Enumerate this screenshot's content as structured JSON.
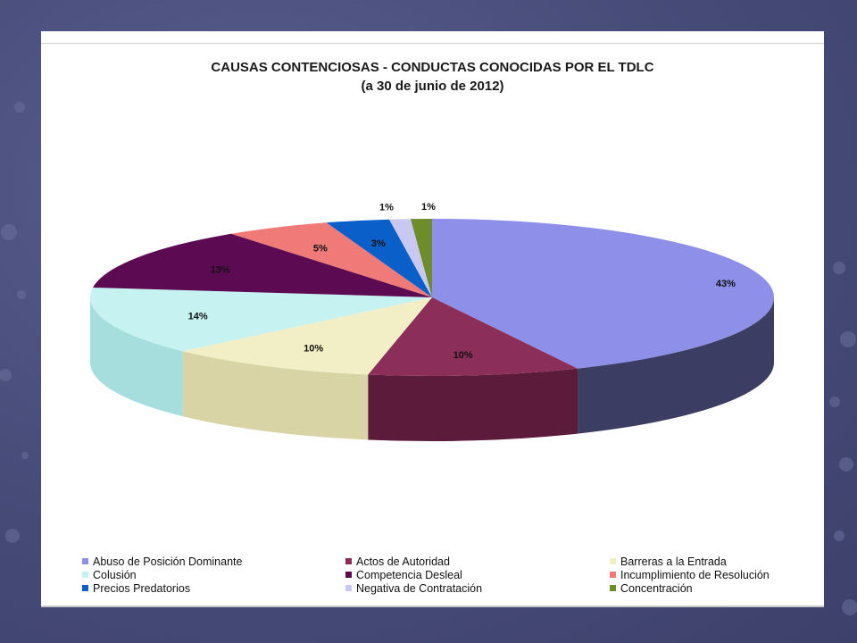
{
  "chart_data": {
    "type": "pie",
    "title": "CAUSAS CONTENCIOSAS - CONDUCTAS CONOCIDAS POR EL TDLC",
    "subtitle": "(a 30 de junio de 2012)",
    "legend_position": "bottom",
    "slices": [
      {
        "name": "Abuso de Posición Dominante",
        "value": 43,
        "label": "43%",
        "color": "#8e8fe8",
        "side_color": "#3c3d62"
      },
      {
        "name": "Actos de Autoridad",
        "value": 10,
        "label": "10%",
        "color": "#8b2f5a",
        "side_color": "#5c1b3a"
      },
      {
        "name": "Barreras a la Entrada",
        "value": 10,
        "label": "10%",
        "color": "#f2efc6",
        "side_color": "#d8d4a6"
      },
      {
        "name": "Colusión",
        "value": 14,
        "label": "14%",
        "color": "#c6f2f2",
        "side_color": "#a6dede"
      },
      {
        "name": "Competencia Desleal",
        "value": 13,
        "label": "13%",
        "color": "#5c0a52",
        "side_color": "#3c0636"
      },
      {
        "name": "Incumplimiento de Resolución",
        "value": 5,
        "label": "5%",
        "color": "#ef7a78",
        "side_color": "#b85a58"
      },
      {
        "name": "Precios Predatorios",
        "value": 3,
        "label": "3%",
        "color": "#0b5fc8",
        "side_color": "#084494"
      },
      {
        "name": "Negativa de Contratación",
        "value": 1,
        "label": "1%",
        "color": "#c8c8f2",
        "side_color": "#9a9ac8"
      },
      {
        "name": "Concentración",
        "value": 1,
        "label": "1%",
        "color": "#6f8c2a",
        "side_color": "#4e6420"
      }
    ]
  }
}
